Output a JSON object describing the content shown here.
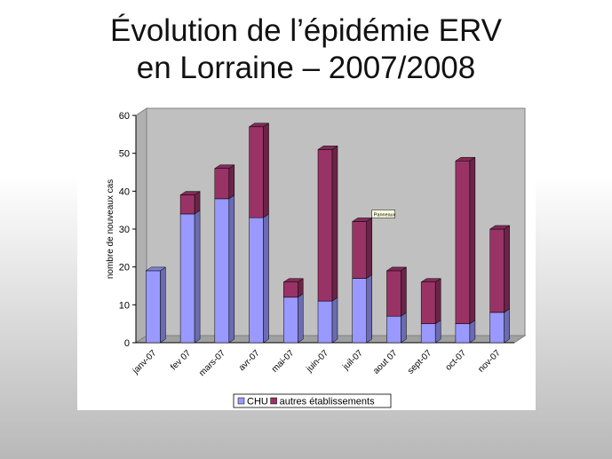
{
  "slide": {
    "title_line1": "Évolution de l’épidémie ERV",
    "title_line2": "en Lorraine – 2007/2008"
  },
  "chart_data": {
    "type": "bar",
    "stacked": true,
    "style": "3d",
    "categories": [
      "janv-07",
      "fev 07",
      "mars-07",
      "avr-07",
      "mai-07",
      "juin-07",
      "juil-07",
      "aout 07",
      "sept-07",
      "oct-07",
      "nov-07"
    ],
    "series": [
      {
        "name": "CHU",
        "color": "#9999ff",
        "values": [
          19,
          34,
          38,
          33,
          12,
          11,
          17,
          7,
          5,
          5,
          8
        ]
      },
      {
        "name": "autres établissements",
        "color": "#993366",
        "values": [
          0,
          5,
          8,
          24,
          4,
          40,
          15,
          12,
          11,
          43,
          22
        ]
      }
    ],
    "ylabel": "nombre de nouveaux cas",
    "xlabel": "",
    "ylim": [
      0,
      60
    ],
    "yticks": [
      0,
      10,
      20,
      30,
      40,
      50,
      60
    ],
    "annotation": "Panneaux",
    "grid": false,
    "legend": "bottom",
    "plot_wall_color": "#c0c0c0"
  }
}
